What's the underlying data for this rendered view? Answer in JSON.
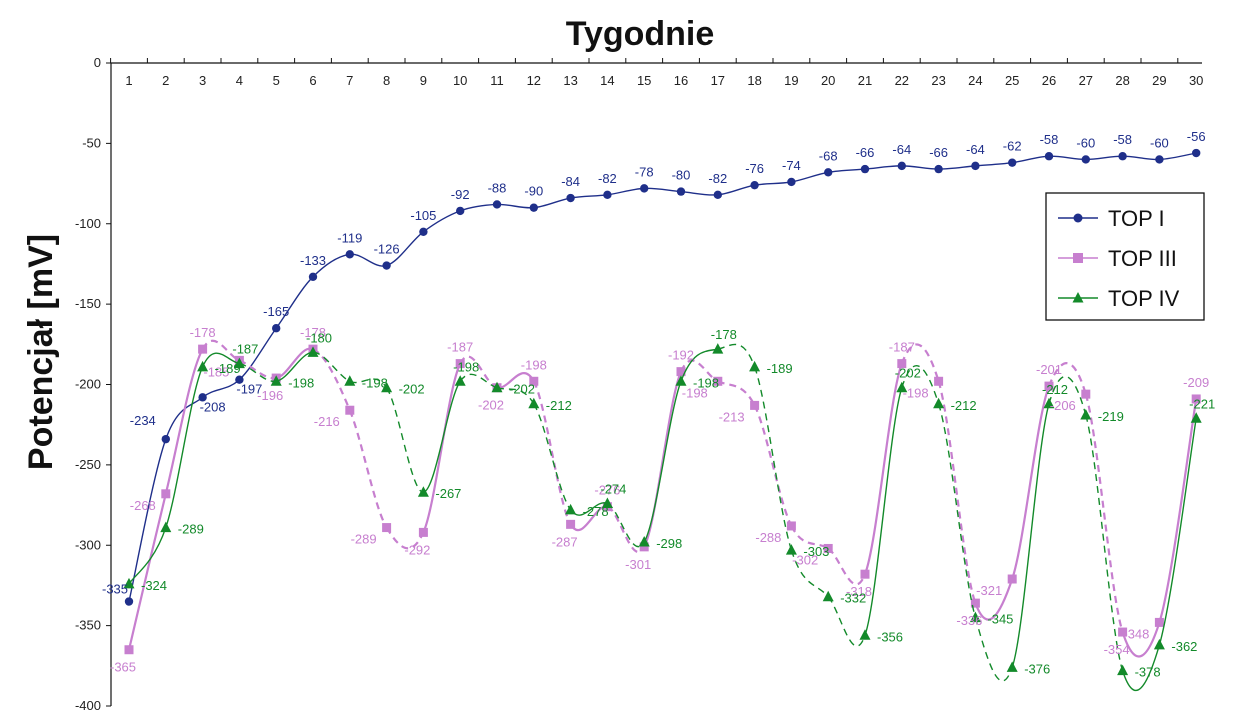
{
  "chart_data": {
    "type": "line",
    "title": "Tygodnie",
    "xlabel": "",
    "ylabel": "Potencjał [mV]",
    "x": [
      1,
      2,
      3,
      4,
      5,
      6,
      7,
      8,
      9,
      10,
      11,
      12,
      13,
      14,
      15,
      16,
      17,
      18,
      19,
      20,
      21,
      22,
      23,
      24,
      25,
      26,
      27,
      28,
      29,
      30
    ],
    "x_axis_position": "top",
    "ylim": [
      -400,
      0
    ],
    "yticks": [
      0,
      -50,
      -100,
      -150,
      -200,
      -250,
      -300,
      -350,
      -400
    ],
    "grid": false,
    "legend_position": "right",
    "series": [
      {
        "name": "TOP I",
        "color": "#1f2f8a",
        "marker": "circle",
        "line_style": "solid",
        "values": [
          -335,
          -234,
          -208,
          -197,
          -165,
          -133,
          -119,
          -126,
          -105,
          -92,
          -88,
          -90,
          -84,
          -82,
          -78,
          -80,
          -82,
          -76,
          -74,
          -68,
          -66,
          -64,
          -66,
          -64,
          -62,
          -58,
          -60,
          -58,
          -60,
          -56
        ]
      },
      {
        "name": "TOP III",
        "color": "#c77fcf",
        "marker": "square",
        "line_style": "mixed",
        "values": [
          -365,
          -268,
          -178,
          -185,
          -196,
          -178,
          -216,
          -289,
          -292,
          -187,
          -202,
          -198,
          -287,
          -276,
          -301,
          -192,
          -198,
          -213,
          -288,
          -302,
          -318,
          -187,
          -198,
          -336,
          -321,
          -201,
          -206,
          -354,
          -348,
          -209
        ]
      },
      {
        "name": "TOP IV",
        "color": "#138a2a",
        "marker": "triangle",
        "line_style": "mixed",
        "values": [
          -324,
          -289,
          -189,
          -187,
          -198,
          -180,
          -198,
          -202,
          -267,
          -198,
          -202,
          -212,
          -278,
          -274,
          -298,
          -198,
          -178,
          -189,
          -303,
          -332,
          -356,
          -202,
          -212,
          -345,
          -376,
          -212,
          -219,
          -378,
          -362,
          -221
        ]
      }
    ]
  }
}
